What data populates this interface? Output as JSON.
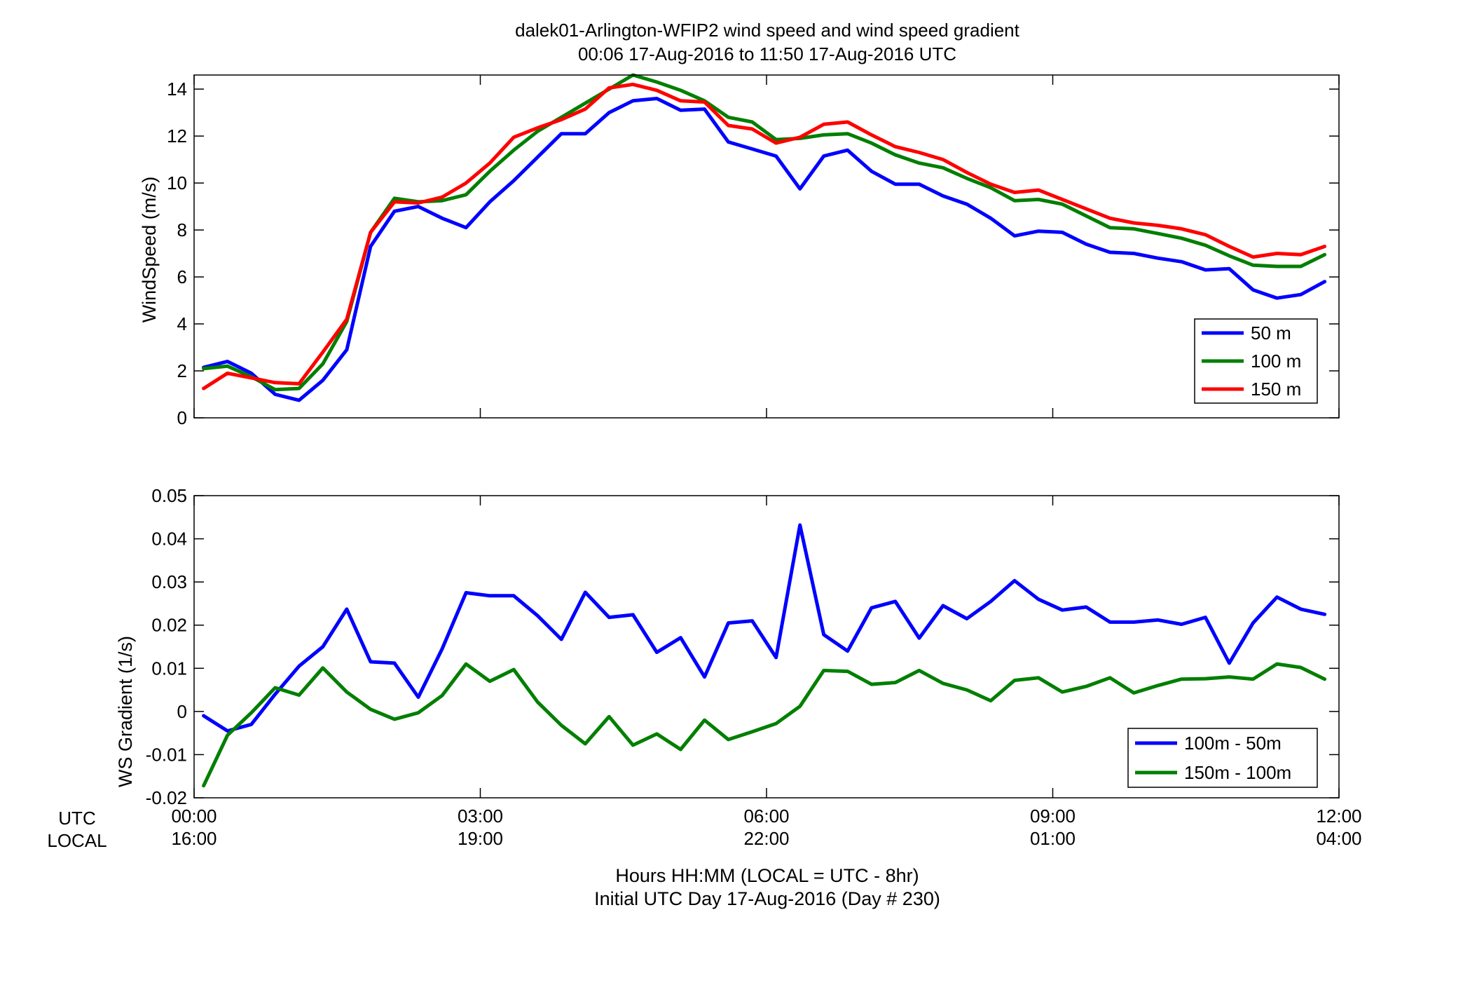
{
  "figure": {
    "title_line1": "dalek01-Arlington-WFIP2  wind speed and wind speed gradient",
    "title_line2": "00:06 17-Aug-2016 to 11:50 17-Aug-2016  UTC",
    "row_label_utc": "UTC",
    "row_label_local": "LOCAL",
    "xlabel_line1": "Hours HH:MM  (LOCAL = UTC - 8hr)",
    "xlabel_line2": "Initial UTC Day 17-Aug-2016 (Day # 230)",
    "x_ticks_utc": [
      "00:00",
      "03:00",
      "06:00",
      "09:00",
      "12:00"
    ],
    "x_ticks_local": [
      "16:00",
      "19:00",
      "22:00",
      "01:00",
      "04:00"
    ]
  },
  "chart_data": [
    {
      "type": "line",
      "ylabel": "WindSpeed (m/s)",
      "xlim": [
        0,
        12
      ],
      "ylim": [
        0,
        14.6
      ],
      "yticks": [
        "0",
        "2",
        "4",
        "6",
        "8",
        "10",
        "12",
        "14"
      ],
      "ytick_values": [
        0,
        2,
        4,
        6,
        8,
        10,
        12,
        14
      ],
      "grid": false,
      "legend_position": "bottom-right",
      "x": [
        0.1,
        0.35,
        0.6,
        0.85,
        1.1,
        1.35,
        1.6,
        1.85,
        2.1,
        2.35,
        2.6,
        2.85,
        3.1,
        3.35,
        3.6,
        3.85,
        4.1,
        4.35,
        4.6,
        4.85,
        5.1,
        5.35,
        5.6,
        5.85,
        6.1,
        6.35,
        6.6,
        6.85,
        7.1,
        7.35,
        7.6,
        7.85,
        8.1,
        8.35,
        8.6,
        8.85,
        9.1,
        9.35,
        9.6,
        9.85,
        10.1,
        10.35,
        10.6,
        10.85,
        11.1,
        11.35,
        11.6,
        11.85
      ],
      "series": [
        {
          "name": "50 m",
          "color": "#0000ff",
          "values": [
            2.15,
            2.4,
            1.9,
            1.0,
            0.75,
            1.6,
            2.9,
            7.3,
            8.8,
            9.0,
            8.5,
            8.1,
            9.2,
            10.1,
            11.1,
            12.1,
            12.1,
            13.0,
            13.5,
            13.6,
            13.1,
            13.15,
            11.75,
            11.45,
            11.15,
            9.75,
            11.15,
            11.4,
            10.5,
            9.95,
            9.95,
            9.45,
            9.1,
            8.5,
            7.75,
            7.95,
            7.9,
            7.4,
            7.05,
            7.0,
            6.8,
            6.65,
            6.3,
            6.35,
            5.45,
            5.1,
            5.25,
            5.8
          ]
        },
        {
          "name": "100 m",
          "color": "#007f00",
          "values": [
            2.1,
            2.2,
            1.75,
            1.2,
            1.25,
            2.3,
            4.1,
            7.9,
            9.35,
            9.2,
            9.25,
            9.5,
            10.5,
            11.4,
            12.2,
            12.8,
            13.4,
            14.0,
            14.6,
            14.3,
            13.95,
            13.5,
            12.8,
            12.6,
            11.85,
            11.9,
            12.05,
            12.1,
            11.7,
            11.2,
            10.85,
            10.65,
            10.2,
            9.8,
            9.25,
            9.3,
            9.1,
            8.6,
            8.1,
            8.05,
            7.85,
            7.65,
            7.35,
            6.9,
            6.5,
            6.45,
            6.45,
            6.95
          ]
        },
        {
          "name": "150 m",
          "color": "#ff0000",
          "values": [
            1.25,
            1.9,
            1.7,
            1.5,
            1.45,
            2.8,
            4.2,
            7.9,
            9.2,
            9.15,
            9.4,
            10.0,
            10.85,
            11.95,
            12.35,
            12.7,
            13.15,
            14.05,
            14.2,
            13.95,
            13.5,
            13.45,
            12.45,
            12.3,
            11.7,
            11.95,
            12.5,
            12.6,
            12.05,
            11.55,
            11.3,
            11.0,
            10.45,
            9.95,
            9.6,
            9.7,
            9.3,
            8.9,
            8.5,
            8.3,
            8.2,
            8.05,
            7.8,
            7.3,
            6.85,
            7.0,
            6.95,
            7.3
          ]
        }
      ]
    },
    {
      "type": "line",
      "ylabel": "WS Gradient (1/s)",
      "xlim": [
        0,
        12
      ],
      "ylim": [
        -0.02,
        0.05
      ],
      "yticks": [
        "-0.02",
        "-0.01",
        "0",
        "0.01",
        "0.02",
        "0.03",
        "0.04",
        "0.05"
      ],
      "ytick_values": [
        -0.02,
        -0.01,
        0,
        0.01,
        0.02,
        0.03,
        0.04,
        0.05
      ],
      "grid": false,
      "legend_position": "bottom-right",
      "x": [
        0.1,
        0.35,
        0.6,
        0.85,
        1.1,
        1.35,
        1.6,
        1.85,
        2.1,
        2.35,
        2.6,
        2.85,
        3.1,
        3.35,
        3.6,
        3.85,
        4.1,
        4.35,
        4.6,
        4.85,
        5.1,
        5.35,
        5.6,
        5.85,
        6.1,
        6.35,
        6.6,
        6.85,
        7.1,
        7.35,
        7.6,
        7.85,
        8.1,
        8.35,
        8.6,
        8.85,
        9.1,
        9.35,
        9.6,
        9.85,
        10.1,
        10.35,
        10.6,
        10.85,
        11.1,
        11.35,
        11.6,
        11.85
      ],
      "series": [
        {
          "name": "100m - 50m",
          "color": "#0000ff",
          "values": [
            -0.001,
            -0.0045,
            -0.003,
            0.004,
            0.0105,
            0.015,
            0.0237,
            0.0115,
            0.0112,
            0.0033,
            0.0145,
            0.0275,
            0.0268,
            0.0268,
            0.0222,
            0.0167,
            0.0276,
            0.0218,
            0.0224,
            0.0137,
            0.0171,
            0.008,
            0.0205,
            0.021,
            0.0125,
            0.0432,
            0.0178,
            0.014,
            0.024,
            0.0255,
            0.017,
            0.0245,
            0.0215,
            0.0255,
            0.0303,
            0.026,
            0.0235,
            0.0242,
            0.0207,
            0.0207,
            0.0212,
            0.0202,
            0.0218,
            0.0112,
            0.0205,
            0.0265,
            0.0237,
            0.0225
          ]
        },
        {
          "name": "150m - 100m",
          "color": "#007f00",
          "values": [
            -0.0172,
            -0.0055,
            -0.0003,
            0.0055,
            0.0038,
            0.0101,
            0.0045,
            0.0005,
            -0.0018,
            -0.0003,
            0.0037,
            0.011,
            0.007,
            0.0097,
            0.0022,
            -0.0032,
            -0.0075,
            -0.0012,
            -0.0078,
            -0.0052,
            -0.0088,
            -0.002,
            -0.0065,
            -0.0047,
            -0.0028,
            0.0012,
            0.0095,
            0.0093,
            0.0063,
            0.0067,
            0.0095,
            0.0065,
            0.005,
            0.0025,
            0.0072,
            0.0078,
            0.0045,
            0.0058,
            0.0078,
            0.0043,
            0.006,
            0.0075,
            0.0076,
            0.008,
            0.0075,
            0.011,
            0.0102,
            0.0075
          ]
        }
      ]
    }
  ]
}
